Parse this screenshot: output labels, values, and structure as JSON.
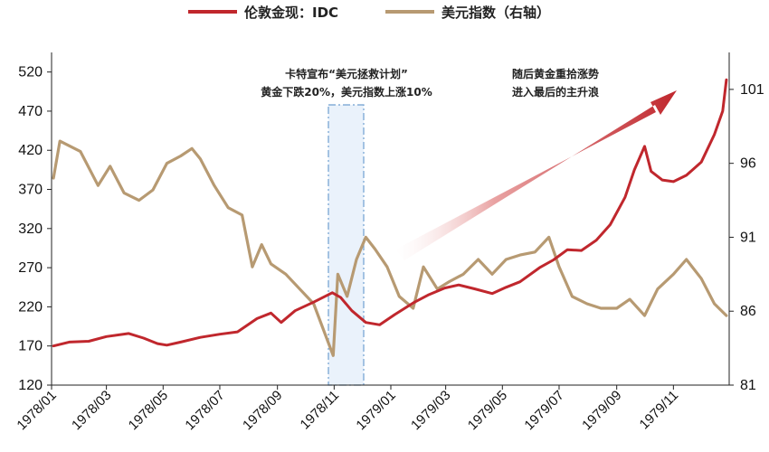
{
  "legend": [
    {
      "label": "伦敦金现：IDC",
      "color": "#c0272d"
    },
    {
      "label": "美元指数（右轴）",
      "color": "#b79a72"
    }
  ],
  "annotations": {
    "carter_line1": "卡特宣布“美元拯救计划”",
    "carter_line2": "黄金下跌20%，美元指数上涨10%",
    "rally_line1": "随后黄金重拾涨势",
    "rally_line2": "进入最后的主升浪"
  },
  "chart_data": {
    "type": "line",
    "title": "",
    "xlabel": "",
    "ylabel": "",
    "x_ticks": [
      "1978/01",
      "1978/03",
      "1978/05",
      "1978/07",
      "1978/09",
      "1978/11",
      "1979/01",
      "1979/03",
      "1979/05",
      "1979/07",
      "1979/09",
      "1979/11"
    ],
    "y_left": {
      "ticks": [
        120,
        170,
        220,
        270,
        320,
        370,
        420,
        470,
        520
      ],
      "ylim": [
        120,
        545
      ]
    },
    "y_right": {
      "ticks": [
        81,
        86,
        91,
        96,
        101
      ],
      "ylim": [
        81,
        103.5
      ]
    },
    "series": [
      {
        "name": "伦敦金现：IDC",
        "axis": "left",
        "color": "#c0272d",
        "x": [
          "1978/01/03",
          "1978/01/20",
          "1978/02/10",
          "1978/03/01",
          "1978/03/25",
          "1978/04/10",
          "1978/04/25",
          "1978/05/05",
          "1978/05/20",
          "1978/06/10",
          "1978/07/01",
          "1978/07/20",
          "1978/08/10",
          "1978/08/25",
          "1978/09/05",
          "1978/09/20",
          "1978/10/10",
          "1978/10/30",
          "1978/11/08",
          "1978/11/20",
          "1978/12/05",
          "1978/12/20",
          "1979/01/05",
          "1979/01/25",
          "1979/02/10",
          "1979/02/28",
          "1979/03/15",
          "1979/04/01",
          "1979/04/20",
          "1979/05/05",
          "1979/05/20",
          "1979/06/10",
          "1979/06/25",
          "1979/07/10",
          "1979/07/25",
          "1979/08/10",
          "1979/08/25",
          "1979/09/10",
          "1979/09/20",
          "1979/10/01",
          "1979/10/08",
          "1979/10/20",
          "1979/11/01",
          "1979/11/15",
          "1979/12/01",
          "1979/12/15",
          "1979/12/24",
          "1979/12/28"
        ],
        "values": [
          170,
          175,
          176,
          182,
          186,
          180,
          173,
          171,
          175,
          181,
          185,
          188,
          205,
          212,
          200,
          215,
          226,
          238,
          232,
          215,
          200,
          197,
          210,
          225,
          235,
          244,
          248,
          243,
          237,
          245,
          252,
          270,
          280,
          293,
          292,
          305,
          325,
          360,
          395,
          425,
          393,
          382,
          380,
          388,
          405,
          440,
          470,
          510
        ]
      },
      {
        "name": "美元指数（右轴）",
        "axis": "right",
        "color": "#b79a72",
        "x": [
          "1978/01/03",
          "1978/01/10",
          "1978/02/01",
          "1978/02/20",
          "1978/03/05",
          "1978/03/20",
          "1978/04/05",
          "1978/04/20",
          "1978/05/05",
          "1978/05/20",
          "1978/06/01",
          "1978/06/10",
          "1978/06/25",
          "1978/07/10",
          "1978/07/25",
          "1978/08/05",
          "1978/08/15",
          "1978/08/25",
          "1978/09/10",
          "1978/09/25",
          "1978/10/10",
          "1978/10/25",
          "1978/10/31",
          "1978/11/05",
          "1978/11/15",
          "1978/11/25",
          "1978/12/05",
          "1978/12/15",
          "1978/12/28",
          "1979/01/10",
          "1979/01/25",
          "1979/02/05",
          "1979/02/20",
          "1979/03/05",
          "1979/03/20",
          "1979/04/05",
          "1979/04/20",
          "1979/05/05",
          "1979/05/20",
          "1979/06/05",
          "1979/06/20",
          "1979/07/01",
          "1979/07/15",
          "1979/07/31",
          "1979/08/15",
          "1979/09/01",
          "1979/09/15",
          "1979/10/01",
          "1979/10/15",
          "1979/11/01",
          "1979/11/15",
          "1979/12/01",
          "1979/12/15",
          "1979/12/28"
        ],
        "values": [
          95,
          97.5,
          96.8,
          94.5,
          95.8,
          94,
          93.5,
          94.2,
          96,
          96.5,
          97,
          96.3,
          94.5,
          93,
          92.5,
          89,
          90.5,
          89.2,
          88.5,
          87.5,
          86.5,
          84,
          83,
          88.5,
          87,
          89.5,
          91,
          90.2,
          89,
          87,
          86.2,
          89,
          87.5,
          88,
          88.5,
          89.5,
          88.5,
          89.5,
          89.8,
          90,
          91,
          89,
          87,
          86.5,
          86.2,
          86.2,
          86.8,
          85.7,
          87.5,
          88.5,
          89.5,
          88.2,
          86.5,
          85.7
        ]
      }
    ],
    "grid": false,
    "legend_position": "top"
  }
}
